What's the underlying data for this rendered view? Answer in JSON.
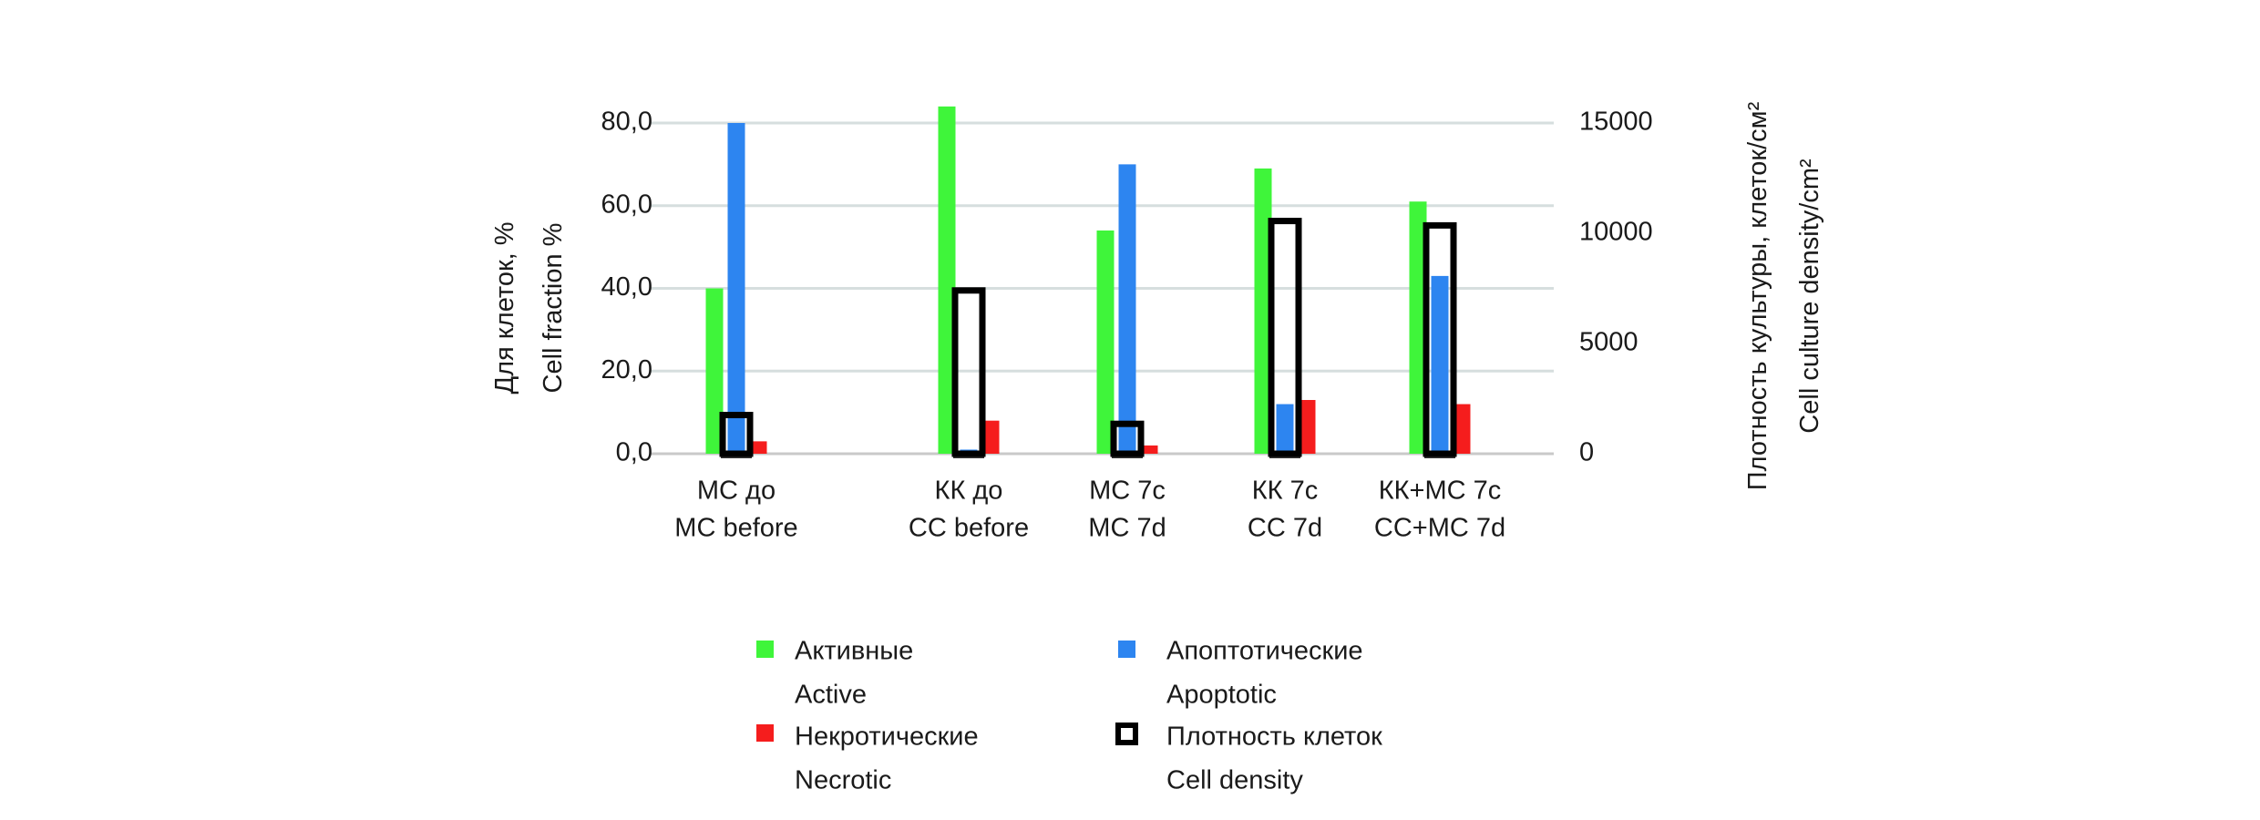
{
  "chart_data": {
    "type": "bar",
    "title": "",
    "y_left_label_ru": "Для клеток, %",
    "y_left_label_en": "Cell fraction %",
    "y_right_label_ru": "Плотность культуры, клеток/см²",
    "y_right_label_en": "Cell culture density/cm²",
    "y_left_lim": [
      0,
      80
    ],
    "y_left_ticks": [
      0,
      20,
      40,
      60,
      80
    ],
    "y_left_tick_labels": [
      "0,0",
      "20,0",
      "40,0",
      "60,0",
      "80,0"
    ],
    "y_right_lim": [
      0,
      15000
    ],
    "y_right_ticks": [
      0,
      5000,
      10000,
      15000
    ],
    "y_right_tick_labels": [
      "0",
      "5000",
      "10000",
      "15000"
    ],
    "grid": true,
    "legend_position": "bottom",
    "categories": [
      {
        "ru": "МС до",
        "en": "MC before"
      },
      {
        "ru": "КК до",
        "en": "CC before"
      },
      {
        "ru": "МС 7с",
        "en": "MC 7d"
      },
      {
        "ru": "КК 7с",
        "en": "CC 7d"
      },
      {
        "ru": "КК+МС 7с",
        "en": "CC+MC 7d"
      }
    ],
    "series": [
      {
        "key": "active",
        "name_ru": "Активные",
        "name_en": "Active",
        "axis": "left",
        "color": "#3ff53a",
        "values": [
          40,
          84,
          54,
          69,
          61
        ]
      },
      {
        "key": "apoptotic",
        "name_ru": "Апоптотические",
        "name_en": "Apoptotic",
        "axis": "left",
        "color": "#2d85f0",
        "values": [
          80,
          1,
          70,
          12,
          43
        ]
      },
      {
        "key": "necrotic",
        "name_ru": "Некротические",
        "name_en": "Necrotic",
        "axis": "left",
        "color": "#f51d1d",
        "values": [
          3,
          8,
          2,
          13,
          12
        ]
      },
      {
        "key": "density",
        "name_ru": "Плотность клеток",
        "name_en": "Cell density",
        "axis": "right",
        "color": "#000000",
        "values": [
          1900,
          7550,
          1500,
          10700,
          10500
        ]
      }
    ]
  }
}
